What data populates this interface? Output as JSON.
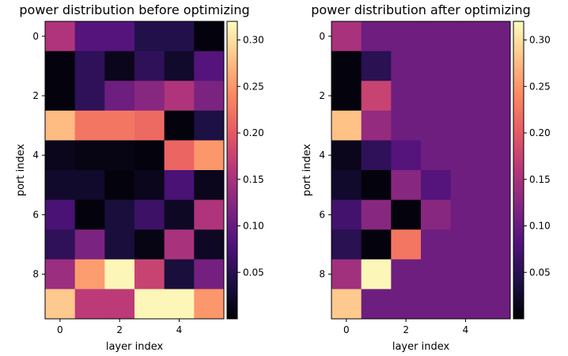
{
  "chart_data": [
    {
      "type": "heatmap",
      "title": "power distribution before optimizing",
      "xlabel": "layer index",
      "ylabel": "port index",
      "x_ticks": [
        0,
        2,
        4
      ],
      "y_ticks": [
        0,
        2,
        4,
        6,
        8
      ],
      "colorbar": {
        "min": 0.0,
        "max": 0.32,
        "ticks": [
          0.05,
          0.1,
          0.15,
          0.2,
          0.25,
          0.3
        ]
      },
      "values": [
        [
          0.155,
          0.085,
          0.085,
          0.045,
          0.045,
          0.005
        ],
        [
          0.005,
          0.055,
          0.015,
          0.055,
          0.025,
          0.085
        ],
        [
          0.005,
          0.055,
          0.105,
          0.125,
          0.155,
          0.115
        ],
        [
          0.275,
          0.225,
          0.225,
          0.215,
          0.005,
          0.04
        ],
        [
          0.015,
          0.01,
          0.01,
          0.005,
          0.21,
          0.25
        ],
        [
          0.025,
          0.025,
          0.005,
          0.015,
          0.075,
          0.015
        ],
        [
          0.075,
          0.005,
          0.035,
          0.065,
          0.02,
          0.155
        ],
        [
          0.055,
          0.115,
          0.035,
          0.01,
          0.15,
          0.02
        ],
        [
          0.14,
          0.255,
          0.315,
          0.175,
          0.035,
          0.11
        ],
        [
          0.285,
          0.165,
          0.165,
          0.315,
          0.315,
          0.25
        ]
      ]
    },
    {
      "type": "heatmap",
      "title": "power distribution after optimizing",
      "xlabel": "layer index",
      "ylabel": "port index",
      "x_ticks": [
        0,
        2,
        4
      ],
      "y_ticks": [
        0,
        2,
        4,
        6,
        8
      ],
      "colorbar": {
        "min": 0.0,
        "max": 0.32,
        "ticks": [
          0.05,
          0.1,
          0.15,
          0.2,
          0.25,
          0.3
        ]
      },
      "values": [
        [
          0.15,
          0.105,
          0.105,
          0.105,
          0.105,
          0.105
        ],
        [
          0.005,
          0.05,
          0.105,
          0.105,
          0.105,
          0.105
        ],
        [
          0.005,
          0.175,
          0.105,
          0.105,
          0.105,
          0.105
        ],
        [
          0.28,
          0.135,
          0.105,
          0.105,
          0.105,
          0.105
        ],
        [
          0.015,
          0.055,
          0.085,
          0.105,
          0.105,
          0.105
        ],
        [
          0.025,
          0.005,
          0.125,
          0.085,
          0.105,
          0.105
        ],
        [
          0.07,
          0.125,
          0.005,
          0.125,
          0.105,
          0.105
        ],
        [
          0.05,
          0.005,
          0.225,
          0.105,
          0.105,
          0.105
        ],
        [
          0.145,
          0.315,
          0.105,
          0.105,
          0.105,
          0.105
        ],
        [
          0.285,
          0.105,
          0.105,
          0.105,
          0.105,
          0.105
        ]
      ]
    }
  ]
}
